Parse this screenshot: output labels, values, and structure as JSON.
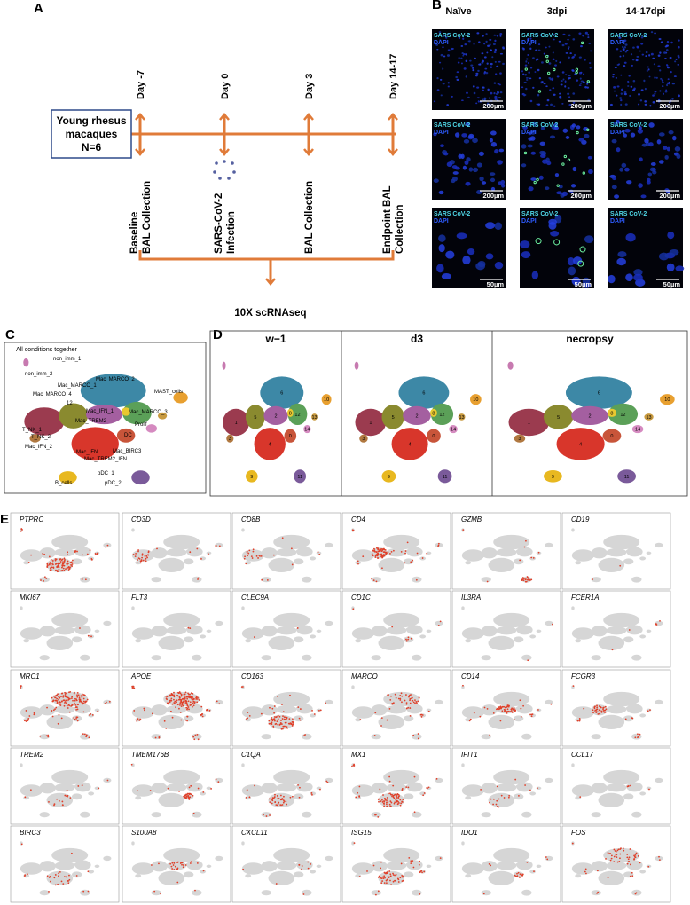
{
  "panel_a": {
    "label": "A",
    "cohort": [
      "Young rhesus",
      "macaques",
      "N=6"
    ],
    "days": [
      "Day -7",
      "Day 0",
      "Day 3",
      "Day 14-17"
    ],
    "events": [
      [
        "Baseline",
        "BAL Collection"
      ],
      [
        "SARS-CoV-2",
        "Infection"
      ],
      [
        "BAL Collection"
      ],
      [
        "Endpoint BAL",
        "Collection"
      ]
    ],
    "readout": "10X scRNAseq"
  },
  "panel_b": {
    "label": "B",
    "columns": [
      "Naïve",
      "3dpi",
      "14-17dpi"
    ],
    "stains": [
      "SARS CoV-2",
      "DAPI"
    ],
    "scale_bars": [
      "200µm",
      "200µm",
      "50µm"
    ]
  },
  "panel_c": {
    "label": "C",
    "title": "All conditions together",
    "clusters": [
      "non_imm_1",
      "non_imm_2",
      "Mac_MARCO_2",
      "Mac_MARCO_1",
      "Mac_MARCO_4",
      "12",
      "Mac_IFN_1",
      "T_NK_1",
      "T_NK_2",
      "Mac_TREM2",
      "Mac_MARCO_3",
      "MAST_cells",
      "Prolif",
      "DC",
      "Mac_IFN_2",
      "Mac_IFN",
      "Mac_BIRC3",
      "Mac_TREM2_IFN",
      "pDC_1",
      "pDC_2",
      "B_cells"
    ]
  },
  "panel_d": {
    "label": "D",
    "conditions": [
      "w−1",
      "d3",
      "necropsy"
    ],
    "clusters": [
      "1",
      "5",
      "6",
      "2",
      "12",
      "4",
      "0",
      "8",
      "14",
      "10",
      "13",
      "9",
      "11",
      "3"
    ]
  },
  "panel_e": {
    "label": "E",
    "genes": [
      "PTPRC",
      "CD3D",
      "CD8B",
      "CD4",
      "GZMB",
      "CD19",
      "MKI67",
      "FLT3",
      "CLEC9A",
      "CD1C",
      "IL3RA",
      "FCER1A",
      "MRC1",
      "APOE",
      "CD163",
      "MARCO",
      "CD14",
      "FCGR3",
      "TREM2",
      "TMEM176B",
      "C1QA",
      "MX1",
      "IFIT1",
      "CCL17",
      "BIRC3",
      "S100A8",
      "CXCL11",
      "ISG15",
      "IDO1",
      "FOS"
    ]
  }
}
